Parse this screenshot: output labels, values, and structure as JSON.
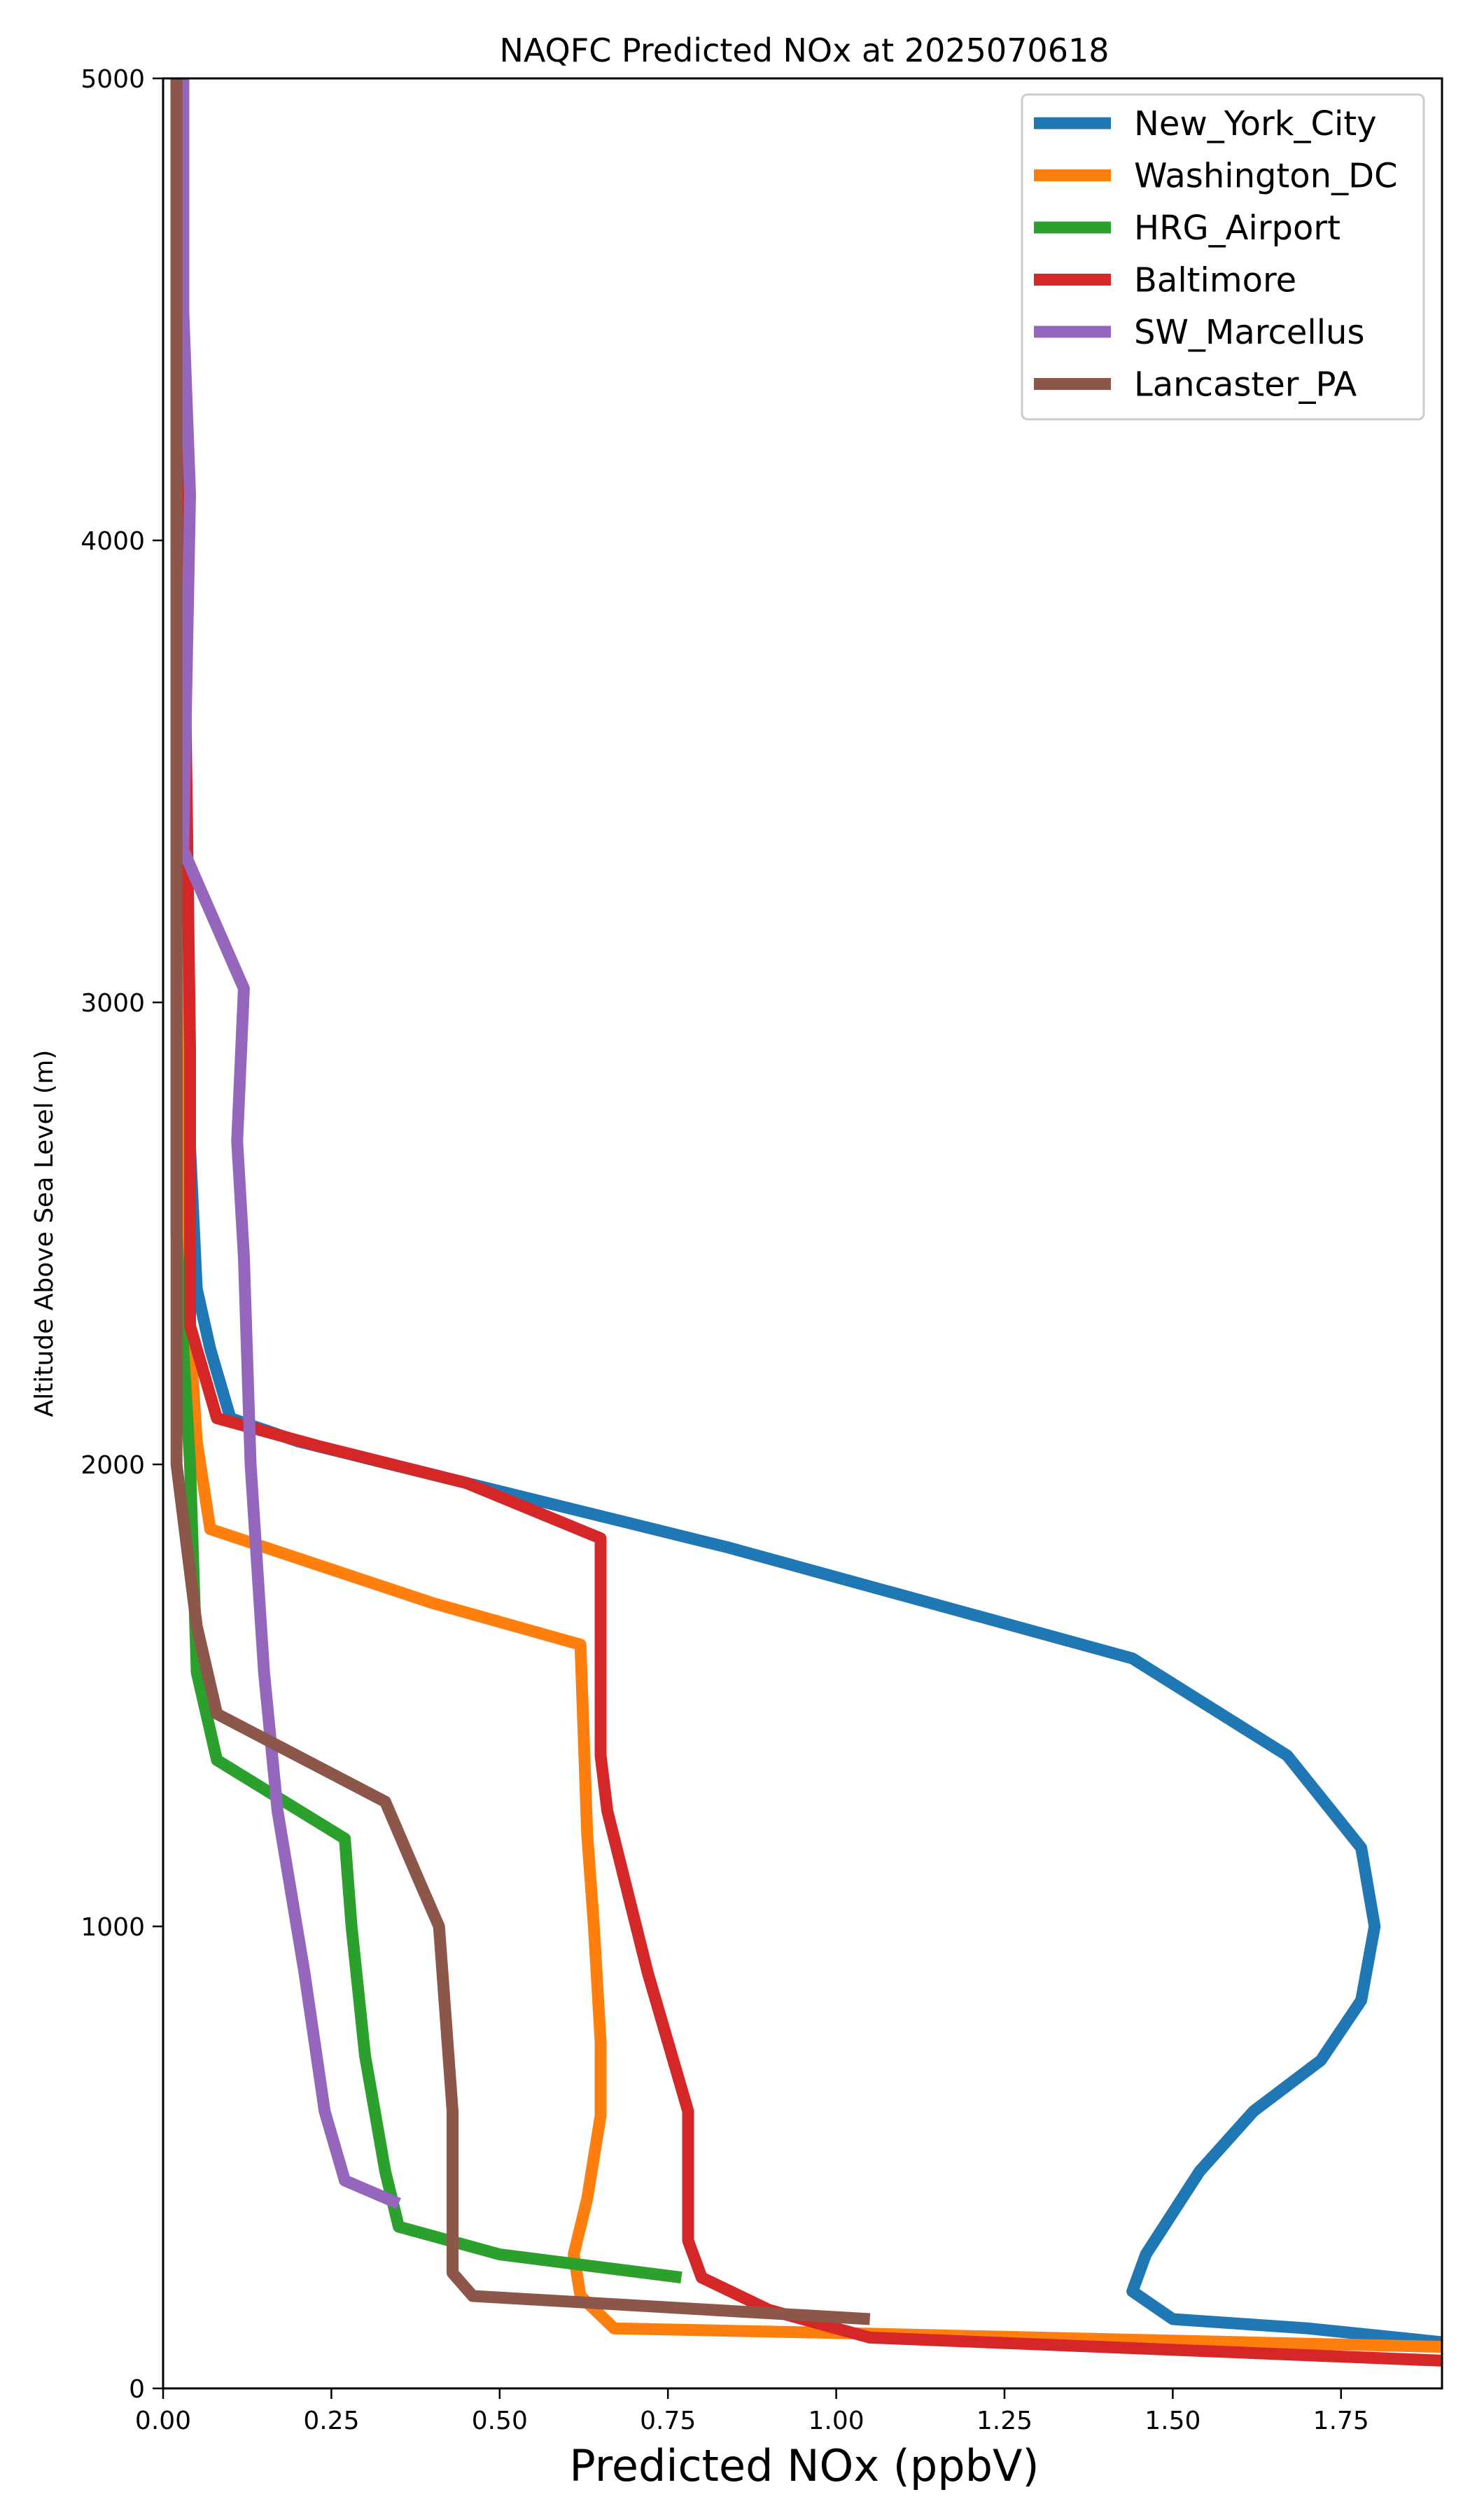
{
  "chart_data": {
    "type": "line",
    "title": "NAQFC Predicted NOx at 2025070618",
    "xlabel": "Predicted NOx (ppbV)",
    "ylabel": "Altitude Above Sea Level (m)",
    "xlim": [
      0,
      1.9
    ],
    "ylim": [
      0,
      5000
    ],
    "xticks": [
      "0.00",
      "0.25",
      "0.50",
      "0.75",
      "1.00",
      "1.25",
      "1.50",
      "1.75"
    ],
    "xtick_values": [
      0,
      0.25,
      0.5,
      0.75,
      1.0,
      1.25,
      1.5,
      1.75
    ],
    "yticks": [
      "0",
      "1000",
      "2000",
      "3000",
      "4000",
      "5000"
    ],
    "ytick_values": [
      0,
      1000,
      2000,
      3000,
      4000,
      5000
    ],
    "grid": false,
    "legend_position": "top-right",
    "series": [
      {
        "name": "New_York_City",
        "color": "#1f77b4",
        "points": [
          [
            1.9,
            100
          ],
          [
            1.7,
            130
          ],
          [
            1.5,
            150
          ],
          [
            1.44,
            210
          ],
          [
            1.46,
            290
          ],
          [
            1.54,
            470
          ],
          [
            1.62,
            600
          ],
          [
            1.72,
            710
          ],
          [
            1.78,
            840
          ],
          [
            1.8,
            1000
          ],
          [
            1.78,
            1170
          ],
          [
            1.67,
            1370
          ],
          [
            1.44,
            1580
          ],
          [
            0.84,
            1820
          ],
          [
            0.45,
            1960
          ],
          [
            0.2,
            2050
          ],
          [
            0.1,
            2100
          ],
          [
            0.07,
            2250
          ],
          [
            0.05,
            2380
          ],
          [
            0.03,
            3000
          ],
          [
            0.02,
            4000
          ],
          [
            0.02,
            5000
          ]
        ]
      },
      {
        "name": "Washington_DC",
        "color": "#ff7f0e",
        "points": [
          [
            1.9,
            90
          ],
          [
            1.0,
            120
          ],
          [
            0.67,
            130
          ],
          [
            0.62,
            200
          ],
          [
            0.61,
            290
          ],
          [
            0.63,
            410
          ],
          [
            0.65,
            590
          ],
          [
            0.65,
            750
          ],
          [
            0.64,
            1000
          ],
          [
            0.63,
            1200
          ],
          [
            0.62,
            1610
          ],
          [
            0.4,
            1700
          ],
          [
            0.07,
            1860
          ],
          [
            0.05,
            2050
          ],
          [
            0.03,
            2500
          ],
          [
            0.03,
            4000
          ],
          [
            0.02,
            5000
          ]
        ]
      },
      {
        "name": "HRG_Airport",
        "color": "#2ca02c",
        "points": [
          [
            0.77,
            240
          ],
          [
            0.5,
            290
          ],
          [
            0.35,
            350
          ],
          [
            0.33,
            470
          ],
          [
            0.3,
            720
          ],
          [
            0.28,
            1000
          ],
          [
            0.27,
            1190
          ],
          [
            0.08,
            1360
          ],
          [
            0.05,
            1550
          ],
          [
            0.04,
            2000
          ],
          [
            0.02,
            2500
          ],
          [
            0.02,
            3200
          ],
          [
            0.02,
            4000
          ],
          [
            0.02,
            5000
          ]
        ]
      },
      {
        "name": "Baltimore",
        "color": "#d62728",
        "points": [
          [
            1.9,
            60
          ],
          [
            1.05,
            110
          ],
          [
            0.9,
            170
          ],
          [
            0.8,
            240
          ],
          [
            0.78,
            320
          ],
          [
            0.78,
            400
          ],
          [
            0.78,
            600
          ],
          [
            0.72,
            900
          ],
          [
            0.66,
            1250
          ],
          [
            0.65,
            1370
          ],
          [
            0.65,
            1600
          ],
          [
            0.65,
            1840
          ],
          [
            0.45,
            1960
          ],
          [
            0.23,
            2040
          ],
          [
            0.08,
            2100
          ],
          [
            0.04,
            2300
          ],
          [
            0.04,
            2900
          ],
          [
            0.03,
            4000
          ],
          [
            0.03,
            5000
          ]
        ]
      },
      {
        "name": "SW_Marcellus",
        "color": "#9467bd",
        "points": [
          [
            0.35,
            400
          ],
          [
            0.27,
            450
          ],
          [
            0.24,
            600
          ],
          [
            0.21,
            900
          ],
          [
            0.17,
            1250
          ],
          [
            0.15,
            1550
          ],
          [
            0.13,
            2000
          ],
          [
            0.12,
            2450
          ],
          [
            0.11,
            2700
          ],
          [
            0.12,
            3030
          ],
          [
            0.03,
            3330
          ],
          [
            0.04,
            4100
          ],
          [
            0.03,
            4500
          ],
          [
            0.03,
            5000
          ]
        ]
      },
      {
        "name": "Lancaster_PA",
        "color": "#8c564b",
        "points": [
          [
            1.05,
            150
          ],
          [
            0.46,
            200
          ],
          [
            0.43,
            250
          ],
          [
            0.43,
            600
          ],
          [
            0.41,
            1000
          ],
          [
            0.38,
            1100
          ],
          [
            0.33,
            1270
          ],
          [
            0.08,
            1460
          ],
          [
            0.05,
            1650
          ],
          [
            0.02,
            2000
          ],
          [
            0.02,
            2500
          ],
          [
            0.02,
            4000
          ],
          [
            0.02,
            5000
          ]
        ]
      }
    ]
  }
}
